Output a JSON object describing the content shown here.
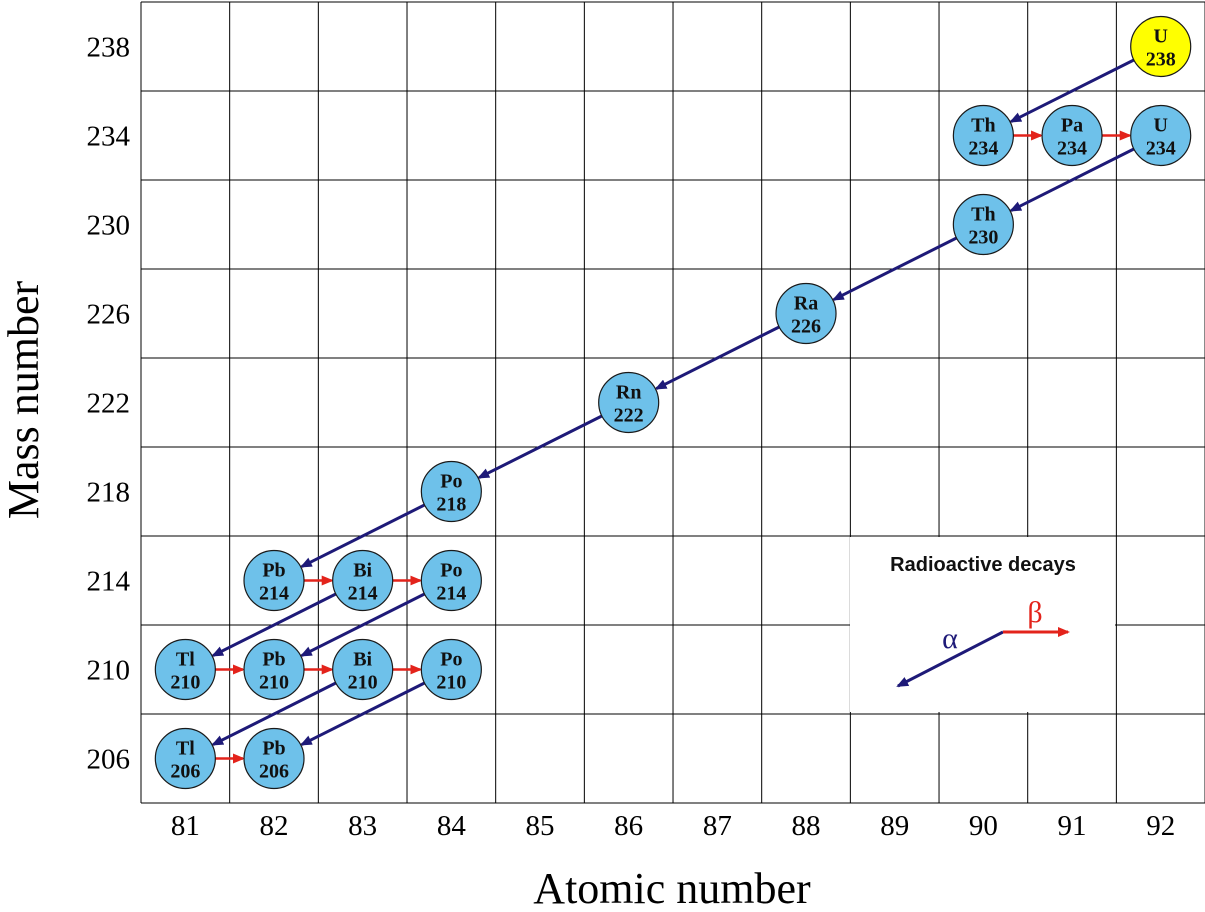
{
  "y_axis": {
    "title": "Mass number",
    "ticks": [
      "238",
      "234",
      "230",
      "226",
      "222",
      "218",
      "214",
      "210",
      "206"
    ]
  },
  "x_axis": {
    "title": "Atomic number",
    "ticks": [
      "81",
      "82",
      "83",
      "84",
      "85",
      "86",
      "87",
      "88",
      "89",
      "90",
      "91",
      "92"
    ]
  },
  "colors": {
    "nuclide_fill": "#6ec1ea",
    "start_fill": "#ffff00",
    "alpha_arrow": "#1e1a78",
    "beta_arrow": "#e3231b",
    "grid": "#000000"
  },
  "nuclides": [
    {
      "symbol": "U",
      "mass": "238",
      "z": 92,
      "a": 238,
      "start": true
    },
    {
      "symbol": "Th",
      "mass": "234",
      "z": 90,
      "a": 234
    },
    {
      "symbol": "Pa",
      "mass": "234",
      "z": 91,
      "a": 234
    },
    {
      "symbol": "U",
      "mass": "234",
      "z": 92,
      "a": 234
    },
    {
      "symbol": "Th",
      "mass": "230",
      "z": 90,
      "a": 230
    },
    {
      "symbol": "Ra",
      "mass": "226",
      "z": 88,
      "a": 226
    },
    {
      "symbol": "Rn",
      "mass": "222",
      "z": 86,
      "a": 222
    },
    {
      "symbol": "Po",
      "mass": "218",
      "z": 84,
      "a": 218
    },
    {
      "symbol": "Pb",
      "mass": "214",
      "z": 82,
      "a": 214
    },
    {
      "symbol": "Bi",
      "mass": "214",
      "z": 83,
      "a": 214
    },
    {
      "symbol": "Po",
      "mass": "214",
      "z": 84,
      "a": 214
    },
    {
      "symbol": "Tl",
      "mass": "210",
      "z": 81,
      "a": 210
    },
    {
      "symbol": "Pb",
      "mass": "210",
      "z": 82,
      "a": 210
    },
    {
      "symbol": "Bi",
      "mass": "210",
      "z": 83,
      "a": 210
    },
    {
      "symbol": "Po",
      "mass": "210",
      "z": 84,
      "a": 210
    },
    {
      "symbol": "Tl",
      "mass": "206",
      "z": 81,
      "a": 206
    },
    {
      "symbol": "Pb",
      "mass": "206",
      "z": 82,
      "a": 206
    }
  ],
  "decays": [
    {
      "type": "alpha",
      "from": [
        92,
        238
      ],
      "to": [
        90,
        234
      ]
    },
    {
      "type": "beta",
      "from": [
        90,
        234
      ],
      "to": [
        91,
        234
      ]
    },
    {
      "type": "beta",
      "from": [
        91,
        234
      ],
      "to": [
        92,
        234
      ]
    },
    {
      "type": "alpha",
      "from": [
        92,
        234
      ],
      "to": [
        90,
        230
      ]
    },
    {
      "type": "alpha",
      "from": [
        90,
        230
      ],
      "to": [
        88,
        226
      ]
    },
    {
      "type": "alpha",
      "from": [
        88,
        226
      ],
      "to": [
        86,
        222
      ]
    },
    {
      "type": "alpha",
      "from": [
        86,
        222
      ],
      "to": [
        84,
        218
      ]
    },
    {
      "type": "alpha",
      "from": [
        84,
        218
      ],
      "to": [
        82,
        214
      ]
    },
    {
      "type": "beta",
      "from": [
        82,
        214
      ],
      "to": [
        83,
        214
      ]
    },
    {
      "type": "beta",
      "from": [
        83,
        214
      ],
      "to": [
        84,
        214
      ]
    },
    {
      "type": "alpha",
      "from": [
        83,
        214
      ],
      "to": [
        81,
        210
      ]
    },
    {
      "type": "alpha",
      "from": [
        84,
        214
      ],
      "to": [
        82,
        210
      ]
    },
    {
      "type": "beta",
      "from": [
        81,
        210
      ],
      "to": [
        82,
        210
      ]
    },
    {
      "type": "beta",
      "from": [
        82,
        210
      ],
      "to": [
        83,
        210
      ]
    },
    {
      "type": "beta",
      "from": [
        83,
        210
      ],
      "to": [
        84,
        210
      ]
    },
    {
      "type": "alpha",
      "from": [
        83,
        210
      ],
      "to": [
        81,
        206
      ]
    },
    {
      "type": "alpha",
      "from": [
        84,
        210
      ],
      "to": [
        82,
        206
      ]
    },
    {
      "type": "beta",
      "from": [
        81,
        206
      ],
      "to": [
        82,
        206
      ]
    }
  ],
  "legend": {
    "title": "Radioactive decays",
    "alpha_symbol": "α",
    "beta_symbol": "β"
  }
}
